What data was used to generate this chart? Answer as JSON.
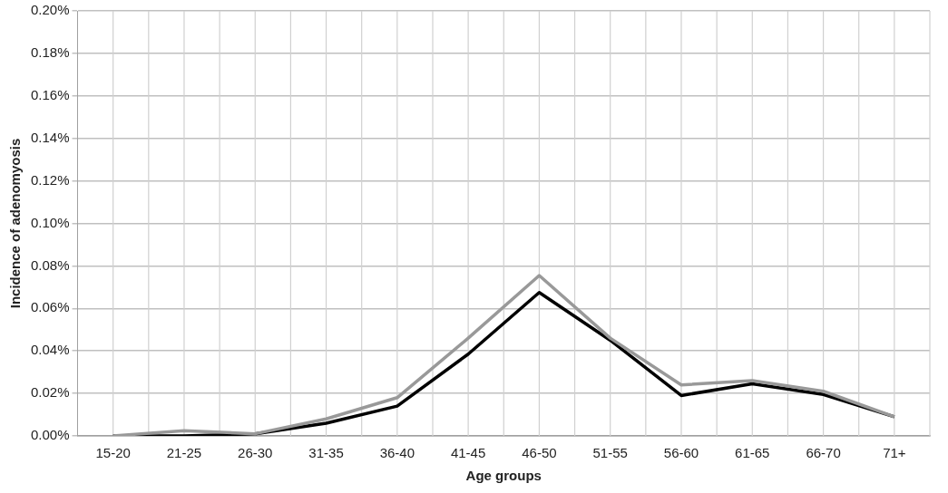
{
  "chart_data": {
    "type": "line",
    "xlabel": "Age groups",
    "ylabel": "Incidence of adenomyosis",
    "categories": [
      "15-20",
      "21-25",
      "26-30",
      "31-35",
      "36-40",
      "41-45",
      "46-50",
      "51-55",
      "56-60",
      "61-65",
      "66-70",
      "71+"
    ],
    "series": [
      {
        "color": "#999999",
        "values": [
          0,
          0.0025,
          0.001,
          0.008,
          0.018,
          0.046,
          0.0755,
          0.046,
          0.024,
          0.026,
          0.021,
          0.009
        ]
      },
      {
        "color": "#000000",
        "values": [
          0,
          0,
          0.001,
          0.006,
          0.014,
          0.0385,
          0.0675,
          0.045,
          0.019,
          0.0245,
          0.0195,
          0.009
        ]
      }
    ],
    "ylim": [
      0,
      0.2
    ],
    "yticks": [
      {
        "value": 0,
        "label": "0.00%"
      },
      {
        "value": 0.02,
        "label": "0.02%"
      },
      {
        "value": 0.04,
        "label": "0.04%"
      },
      {
        "value": 0.06,
        "label": "0.06%"
      },
      {
        "value": 0.08,
        "label": "0.08%"
      },
      {
        "value": 0.1,
        "label": "0.10%"
      },
      {
        "value": 0.12,
        "label": "0.12%"
      },
      {
        "value": 0.14,
        "label": "0.14%"
      },
      {
        "value": 0.16,
        "label": "0.16%"
      },
      {
        "value": 0.18,
        "label": "0.18%"
      },
      {
        "value": 0.2,
        "label": "0.20%"
      }
    ],
    "grid": true,
    "legend": false,
    "marker": "none",
    "line_style": "solid"
  }
}
